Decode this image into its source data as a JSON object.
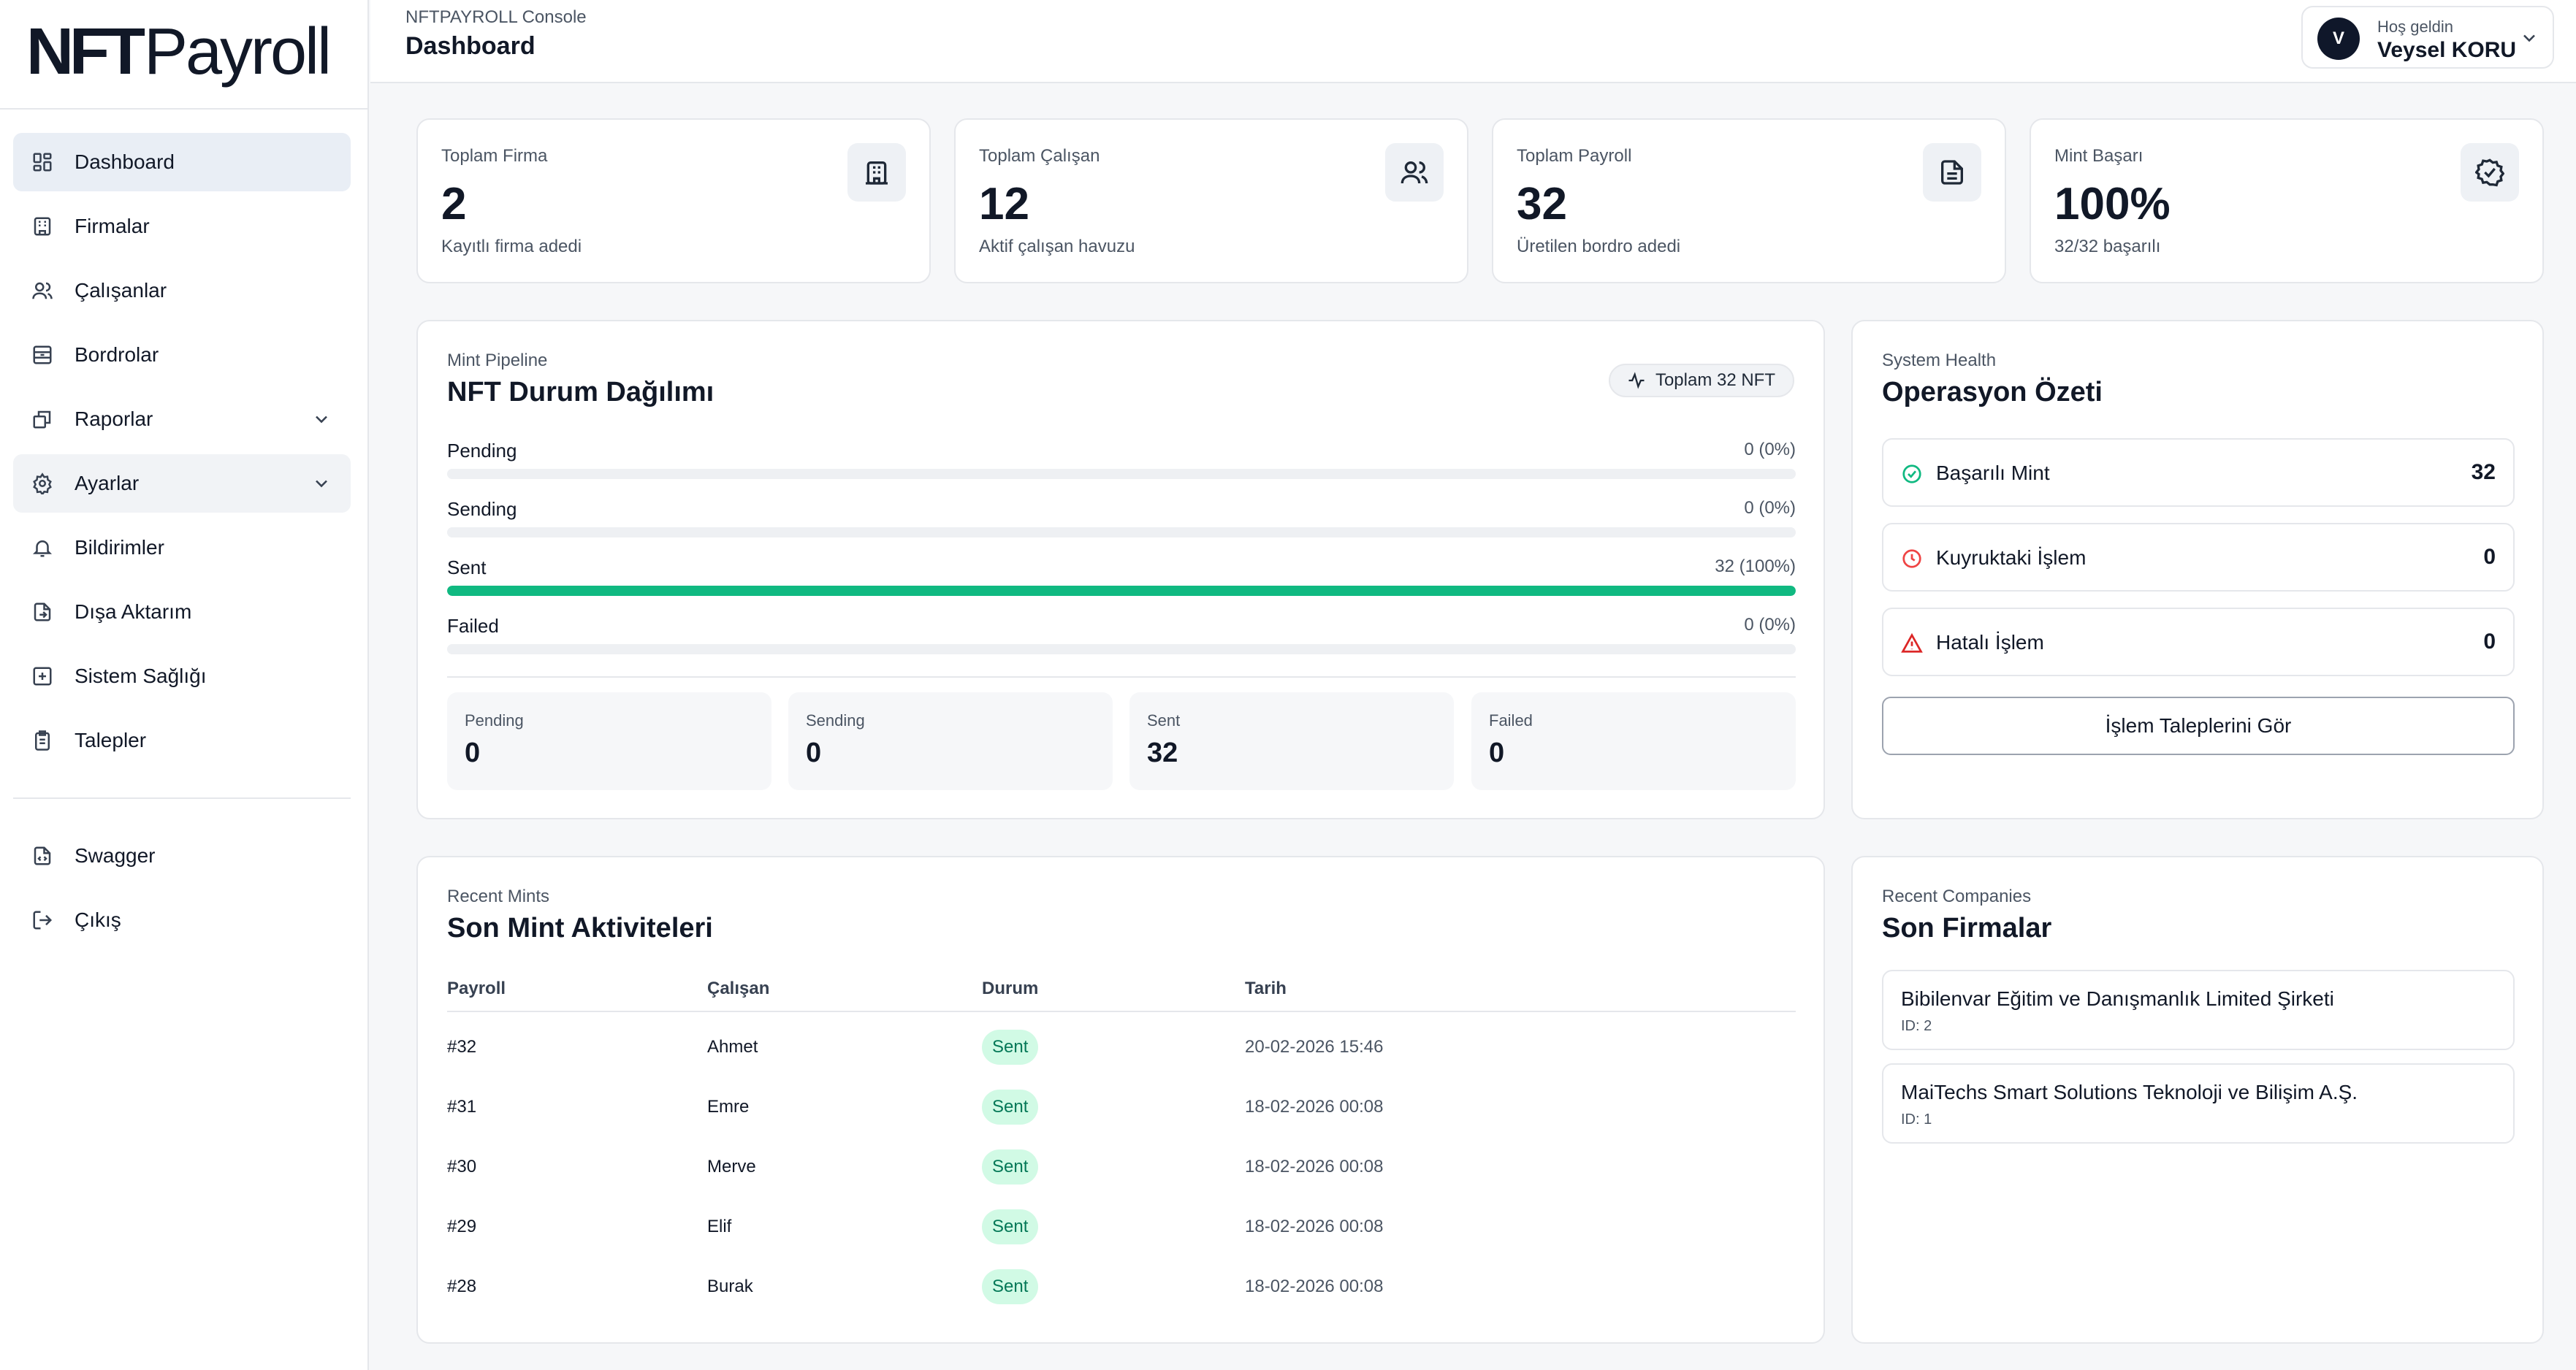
{
  "brand": {
    "logo_bold": "NFT",
    "logo_light": "Payroll"
  },
  "sidebar": {
    "items": [
      {
        "label": "Dashboard",
        "icon": "dashboard-icon"
      },
      {
        "label": "Firmalar",
        "icon": "building-icon"
      },
      {
        "label": "Çalışanlar",
        "icon": "users-icon"
      },
      {
        "label": "Bordrolar",
        "icon": "archive-icon"
      },
      {
        "label": "Raporlar",
        "icon": "reports-icon"
      },
      {
        "label": "Ayarlar",
        "icon": "gear-icon"
      },
      {
        "label": "Bildirimler",
        "icon": "bell-icon"
      },
      {
        "label": "Dışa Aktarım",
        "icon": "export-icon"
      },
      {
        "label": "Sistem Sağlığı",
        "icon": "health-icon"
      },
      {
        "label": "Talepler",
        "icon": "clipboard-icon"
      }
    ],
    "bottom": [
      {
        "label": "Swagger",
        "icon": "file-code-icon"
      },
      {
        "label": "Çıkış",
        "icon": "logout-icon"
      }
    ]
  },
  "header": {
    "breadcrumb": "NFTPAYROLL Console",
    "title": "Dashboard",
    "user": {
      "initial": "V",
      "greeting": "Hoş geldin",
      "name": "Veysel KORU"
    }
  },
  "stats": [
    {
      "label": "Toplam Firma",
      "value": "2",
      "sub": "Kayıtlı firma adedi",
      "icon": "building-icon"
    },
    {
      "label": "Toplam Çalışan",
      "value": "12",
      "sub": "Aktif çalışan havuzu",
      "icon": "users-icon"
    },
    {
      "label": "Toplam Payroll",
      "value": "32",
      "sub": "Üretilen bordro adedi",
      "icon": "document-icon"
    },
    {
      "label": "Mint Başarı",
      "value": "100%",
      "sub": "32/32 başarılı",
      "icon": "badge-check-icon"
    }
  ],
  "pipeline": {
    "kicker": "Mint Pipeline",
    "title": "NFT Durum Dağılımı",
    "total_pill": "Toplam 32 NFT",
    "bars": [
      {
        "label": "Pending",
        "value_text": "0 (0%)",
        "fraction": 0
      },
      {
        "label": "Sending",
        "value_text": "0 (0%)",
        "fraction": 0
      },
      {
        "label": "Sent",
        "value_text": "32 (100%)",
        "fraction": 1
      },
      {
        "label": "Failed",
        "value_text": "0 (0%)",
        "fraction": 0
      }
    ],
    "summary": [
      {
        "label": "Pending",
        "value": "0"
      },
      {
        "label": "Sending",
        "value": "0"
      },
      {
        "label": "Sent",
        "value": "32"
      },
      {
        "label": "Failed",
        "value": "0"
      }
    ],
    "bar_color": "#10b981"
  },
  "operations": {
    "kicker": "System Health",
    "title": "Operasyon Özeti",
    "rows": [
      {
        "label": "Başarılı Mint",
        "value": "32",
        "icon": "check-circle-icon",
        "color": "#10b981"
      },
      {
        "label": "Kuyruktaki İşlem",
        "value": "0",
        "icon": "clock-icon",
        "color": "#ef4444"
      },
      {
        "label": "Hatalı İşlem",
        "value": "0",
        "icon": "warning-icon",
        "color": "#dc2626"
      }
    ],
    "button": "İşlem Taleplerini Gör"
  },
  "recent_mints": {
    "kicker": "Recent Mints",
    "title": "Son Mint Aktiviteleri",
    "columns": [
      "Payroll",
      "Çalışan",
      "Durum",
      "Tarih"
    ],
    "rows": [
      {
        "payroll": "#32",
        "employee": "Ahmet",
        "status": "Sent",
        "date": "20-02-2026 15:46"
      },
      {
        "payroll": "#31",
        "employee": "Emre",
        "status": "Sent",
        "date": "18-02-2026 00:08"
      },
      {
        "payroll": "#30",
        "employee": "Merve",
        "status": "Sent",
        "date": "18-02-2026 00:08"
      },
      {
        "payroll": "#29",
        "employee": "Elif",
        "status": "Sent",
        "date": "18-02-2026 00:08"
      },
      {
        "payroll": "#28",
        "employee": "Burak",
        "status": "Sent",
        "date": "18-02-2026 00:08"
      }
    ]
  },
  "recent_companies": {
    "kicker": "Recent Companies",
    "title": "Son Firmalar",
    "items": [
      {
        "name": "Bibilenvar Eğitim ve Danışmanlık Limited Şirketi",
        "id": "ID: 2"
      },
      {
        "name": "MaiTechs Smart Solutions Teknoloji ve Bilişim A.Ş.",
        "id": "ID: 1"
      }
    ]
  }
}
